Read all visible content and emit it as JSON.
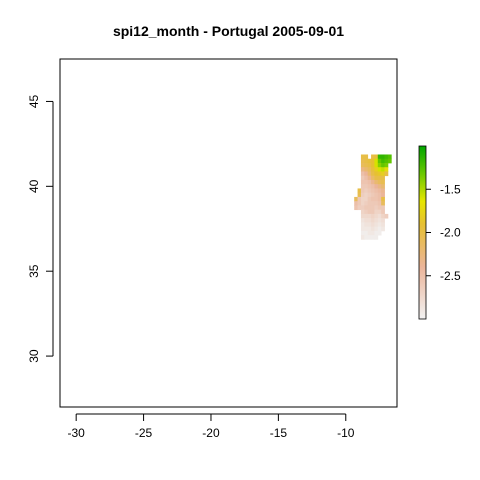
{
  "title": "spi12_month - Portugal 2005-09-01",
  "chart_data": {
    "type": "heatmap",
    "title": "spi12_month - Portugal 2005-09-01",
    "xlabel": "",
    "ylabel": "",
    "xlim": [
      -31.2,
      -6.2
    ],
    "ylim": [
      27.0,
      47.5
    ],
    "x_ticks": [
      -30,
      -25,
      -20,
      -15,
      -10
    ],
    "x_tick_labels": [
      "-30",
      "-25",
      "-20",
      "-15",
      "-10"
    ],
    "y_ticks": [
      30,
      35,
      40,
      45
    ],
    "y_tick_labels": [
      "30",
      "35",
      "40",
      "45"
    ],
    "grid": false,
    "legend": {
      "placement": "right",
      "range": [
        -3.0,
        -1.0
      ],
      "ticks": [
        -1.5,
        -2.0,
        -2.5
      ],
      "tick_labels": [
        "-1.5",
        "-2.0",
        "-2.5"
      ],
      "colors": [
        "#f2f2f2",
        "#ebb59a",
        "#e6c032",
        "#e6e600",
        "#63c600",
        "#00a600"
      ]
    },
    "cell_size_deg": 0.25,
    "rows": [
      {
        "lat": 41.75,
        "cells": [
          [
            -8.75,
            -2.0
          ],
          [
            -8.5,
            -2.0
          ],
          [
            -8.0,
            -2.0
          ],
          [
            -7.75,
            -1.95
          ],
          [
            -7.5,
            -1.15
          ],
          [
            -7.25,
            -1.15
          ],
          [
            -7.0,
            -1.2
          ],
          [
            -6.75,
            -1.25
          ]
        ]
      },
      {
        "lat": 41.5,
        "cells": [
          [
            -8.75,
            -2.05
          ],
          [
            -8.5,
            -2.0
          ],
          [
            -8.25,
            -1.95
          ],
          [
            -8.0,
            -1.9
          ],
          [
            -7.75,
            -1.6
          ],
          [
            -7.5,
            -1.3
          ],
          [
            -7.25,
            -1.2
          ],
          [
            -7.0,
            -1.25
          ],
          [
            -6.75,
            -1.3
          ]
        ]
      },
      {
        "lat": 41.25,
        "cells": [
          [
            -8.75,
            -2.1
          ],
          [
            -8.5,
            -2.05
          ],
          [
            -8.25,
            -2.0
          ],
          [
            -8.0,
            -1.9
          ],
          [
            -7.75,
            -1.6
          ],
          [
            -7.5,
            -1.4
          ],
          [
            -7.25,
            -1.3
          ],
          [
            -7.0,
            -1.35
          ]
        ]
      },
      {
        "lat": 41.0,
        "cells": [
          [
            -8.75,
            -2.3
          ],
          [
            -8.5,
            -2.2
          ],
          [
            -8.25,
            -2.1
          ],
          [
            -8.0,
            -1.95
          ],
          [
            -7.75,
            -1.8
          ],
          [
            -7.5,
            -1.6
          ],
          [
            -7.25,
            -1.55
          ],
          [
            -7.0,
            -1.7
          ]
        ]
      },
      {
        "lat": 40.75,
        "cells": [
          [
            -8.75,
            -2.5
          ],
          [
            -8.5,
            -2.4
          ],
          [
            -8.25,
            -2.2
          ],
          [
            -8.0,
            -2.0
          ],
          [
            -7.75,
            -1.9
          ],
          [
            -7.5,
            -1.85
          ],
          [
            -7.25,
            -1.8
          ],
          [
            -7.0,
            -2.0
          ]
        ]
      },
      {
        "lat": 40.5,
        "cells": [
          [
            -8.75,
            -2.6
          ],
          [
            -8.5,
            -2.5
          ],
          [
            -8.25,
            -2.35
          ],
          [
            -8.0,
            -2.15
          ],
          [
            -7.75,
            -2.0
          ],
          [
            -7.5,
            -2.0
          ],
          [
            -7.25,
            -2.0
          ]
        ]
      },
      {
        "lat": 40.25,
        "cells": [
          [
            -8.75,
            -2.55
          ],
          [
            -8.5,
            -2.55
          ],
          [
            -8.25,
            -2.5
          ],
          [
            -8.0,
            -2.35
          ],
          [
            -7.75,
            -2.2
          ],
          [
            -7.5,
            -2.1
          ],
          [
            -7.25,
            -2.05
          ]
        ]
      },
      {
        "lat": 40.0,
        "cells": [
          [
            -8.75,
            -2.6
          ],
          [
            -8.5,
            -2.6
          ],
          [
            -8.25,
            -2.55
          ],
          [
            -8.0,
            -2.5
          ],
          [
            -7.75,
            -2.4
          ],
          [
            -7.5,
            -2.3
          ],
          [
            -7.25,
            -2.2
          ]
        ]
      },
      {
        "lat": 39.75,
        "cells": [
          [
            -9.0,
            -2.0
          ],
          [
            -8.75,
            -2.6
          ],
          [
            -8.5,
            -2.65
          ],
          [
            -8.25,
            -2.6
          ],
          [
            -8.0,
            -2.55
          ],
          [
            -7.75,
            -2.5
          ],
          [
            -7.5,
            -2.45
          ],
          [
            -7.25,
            -2.35
          ]
        ]
      },
      {
        "lat": 39.5,
        "cells": [
          [
            -9.0,
            -2.05
          ],
          [
            -8.75,
            -2.65
          ],
          [
            -8.5,
            -2.7
          ],
          [
            -8.25,
            -2.65
          ],
          [
            -8.0,
            -2.6
          ],
          [
            -7.75,
            -2.55
          ],
          [
            -7.5,
            -2.5
          ],
          [
            -7.25,
            -2.4
          ]
        ]
      },
      {
        "lat": 39.25,
        "cells": [
          [
            -9.25,
            -2.1
          ],
          [
            -9.0,
            -2.6
          ],
          [
            -8.75,
            -2.7
          ],
          [
            -8.5,
            -2.7
          ],
          [
            -8.25,
            -2.6
          ],
          [
            -8.0,
            -2.55
          ],
          [
            -7.75,
            -2.55
          ],
          [
            -7.5,
            -2.5
          ],
          [
            -7.25,
            -2.0
          ]
        ]
      },
      {
        "lat": 39.0,
        "cells": [
          [
            -9.25,
            -2.5
          ],
          [
            -9.0,
            -2.6
          ],
          [
            -8.75,
            -2.7
          ],
          [
            -8.5,
            -2.65
          ],
          [
            -8.25,
            -2.6
          ],
          [
            -8.0,
            -2.6
          ],
          [
            -7.75,
            -2.6
          ],
          [
            -7.5,
            -2.55
          ],
          [
            -7.25,
            -2.1
          ]
        ]
      },
      {
        "lat": 38.75,
        "cells": [
          [
            -9.25,
            -2.55
          ],
          [
            -9.0,
            -2.65
          ],
          [
            -8.75,
            -2.65
          ],
          [
            -8.5,
            -2.6
          ],
          [
            -8.25,
            -2.6
          ],
          [
            -8.0,
            -2.6
          ],
          [
            -7.75,
            -2.65
          ],
          [
            -7.5,
            -2.6
          ],
          [
            -7.25,
            -2.6
          ]
        ]
      },
      {
        "lat": 38.5,
        "cells": [
          [
            -8.75,
            -2.7
          ],
          [
            -8.5,
            -2.65
          ],
          [
            -8.25,
            -2.6
          ],
          [
            -8.0,
            -2.6
          ],
          [
            -7.75,
            -2.7
          ],
          [
            -7.5,
            -2.7
          ],
          [
            -7.25,
            -2.6
          ]
        ]
      },
      {
        "lat": 38.25,
        "cells": [
          [
            -8.75,
            -2.75
          ],
          [
            -8.5,
            -2.75
          ],
          [
            -8.25,
            -2.75
          ],
          [
            -8.0,
            -2.7
          ],
          [
            -7.75,
            -2.75
          ],
          [
            -7.5,
            -2.8
          ],
          [
            -7.25,
            -2.7
          ],
          [
            -7.0,
            -2.65
          ]
        ]
      },
      {
        "lat": 38.0,
        "cells": [
          [
            -8.75,
            -2.85
          ],
          [
            -8.5,
            -2.8
          ],
          [
            -8.25,
            -2.8
          ],
          [
            -8.0,
            -2.75
          ],
          [
            -7.75,
            -2.8
          ],
          [
            -7.5,
            -2.85
          ],
          [
            -7.25,
            -2.8
          ]
        ]
      },
      {
        "lat": 37.75,
        "cells": [
          [
            -8.75,
            -2.9
          ],
          [
            -8.5,
            -2.85
          ],
          [
            -8.25,
            -2.85
          ],
          [
            -8.0,
            -2.8
          ],
          [
            -7.75,
            -2.85
          ],
          [
            -7.5,
            -2.9
          ],
          [
            -7.25,
            -2.85
          ]
        ]
      },
      {
        "lat": 37.5,
        "cells": [
          [
            -8.75,
            -2.9
          ],
          [
            -8.5,
            -2.9
          ],
          [
            -8.25,
            -2.9
          ],
          [
            -8.0,
            -2.85
          ],
          [
            -7.75,
            -2.9
          ],
          [
            -7.5,
            -2.95
          ],
          [
            -7.25,
            -2.9
          ]
        ]
      },
      {
        "lat": 37.25,
        "cells": [
          [
            -8.75,
            -2.95
          ],
          [
            -8.5,
            -2.95
          ],
          [
            -8.25,
            -2.9
          ],
          [
            -8.0,
            -2.9
          ],
          [
            -7.75,
            -2.95
          ],
          [
            -7.5,
            -2.95
          ]
        ]
      },
      {
        "lat": 37.0,
        "cells": [
          [
            -8.75,
            -2.9
          ],
          [
            -8.5,
            -2.95
          ],
          [
            -8.25,
            -2.95
          ],
          [
            -8.0,
            -2.95
          ],
          [
            -7.75,
            -2.95
          ]
        ]
      }
    ]
  }
}
